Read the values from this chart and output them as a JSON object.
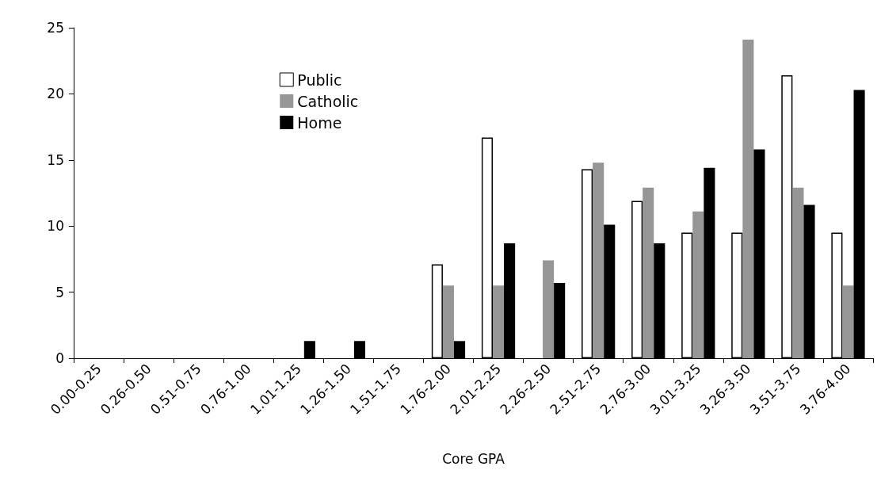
{
  "chart_data": {
    "type": "bar",
    "xlabel": "Core GPA",
    "categories": [
      "0.00-0.25",
      "0.26-0.50",
      "0.51-0.75",
      "0.76-1.00",
      "1.01-1.25",
      "1.26-1.50",
      "1.51-1.75",
      "1.76-2.00",
      "2.01-2.25",
      "2.26-2.50",
      "2.51-2.75",
      "2.76-3.00",
      "3.01-3.25",
      "3.26-3.50",
      "3.51-3.75",
      "3.76-4.00"
    ],
    "series": [
      {
        "name": "Public",
        "color": "#ffffff",
        "values": [
          0,
          0,
          0,
          0,
          0,
          0,
          0,
          7.1,
          16.7,
          0,
          14.3,
          11.9,
          9.5,
          9.5,
          21.4,
          9.5
        ]
      },
      {
        "name": "Catholic",
        "color": "#969696",
        "values": [
          0,
          0,
          0,
          0,
          0,
          0,
          0,
          5.5,
          5.5,
          7.4,
          14.8,
          12.9,
          11.1,
          24.1,
          12.9,
          5.5
        ]
      },
      {
        "name": "Home",
        "color": "#000000",
        "values": [
          0,
          0,
          0,
          0,
          1.3,
          1.3,
          0,
          1.3,
          8.7,
          5.7,
          10.1,
          8.7,
          14.4,
          15.8,
          11.6,
          20.3
        ]
      }
    ],
    "ylim": [
      0,
      25
    ],
    "yticks": [
      0,
      5,
      10,
      15,
      20,
      25
    ],
    "grid": false,
    "legend": "top"
  }
}
